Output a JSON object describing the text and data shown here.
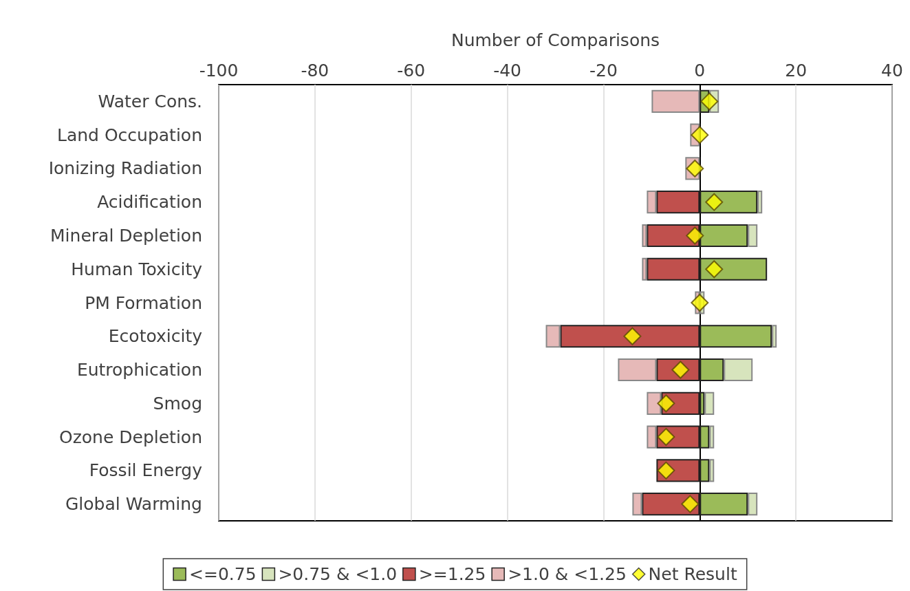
{
  "chart_data": {
    "type": "bar",
    "orientation": "horizontal",
    "stacked": true,
    "xlabel": "Number of Comparisons",
    "categories": [
      "Water Cons.",
      "Land Occupation",
      "Ionizing Radiation",
      "Acidification",
      "Mineral Depletion",
      "Human Toxicity",
      "PM Formation",
      "Ecotoxicity",
      "Eutrophication",
      "Smog",
      "Ozone Depletion",
      "Fossil Energy",
      "Global Warming"
    ],
    "series": [
      {
        "name": "<=0.75",
        "color": "#9bbb59",
        "values": [
          2,
          null,
          null,
          12,
          10,
          14,
          null,
          15,
          5,
          1,
          2,
          2,
          10
        ]
      },
      {
        "name": ">0.75 & <1.0",
        "color": "#d7e4bd",
        "values": [
          2,
          null,
          null,
          1,
          2,
          null,
          1,
          1,
          6,
          2,
          1,
          1,
          2
        ]
      },
      {
        "name": ">=1.25",
        "color": "#c0504d",
        "values": [
          null,
          null,
          null,
          -9,
          -11,
          -11,
          null,
          -29,
          -9,
          -8,
          -9,
          -9,
          -12
        ]
      },
      {
        "name": ">1.0 & <1.25",
        "color": "#e6b9b8",
        "values": [
          -10,
          -2,
          -3,
          -2,
          -1,
          -1,
          -1,
          -3,
          -8,
          -3,
          -2,
          null,
          -2
        ]
      },
      {
        "name": "Net Result",
        "type": "scatter",
        "marker": "diamond",
        "color": "#ffff00",
        "values": [
          2,
          0,
          -1,
          3,
          -1,
          3,
          0,
          -14,
          -4,
          -7,
          -7,
          -7,
          -2
        ]
      }
    ],
    "xlim": [
      -100,
      40
    ],
    "xticks": [
      -100,
      -80,
      -60,
      -40,
      -20,
      0,
      20,
      40
    ],
    "grid": "x",
    "legend": "bottom"
  }
}
